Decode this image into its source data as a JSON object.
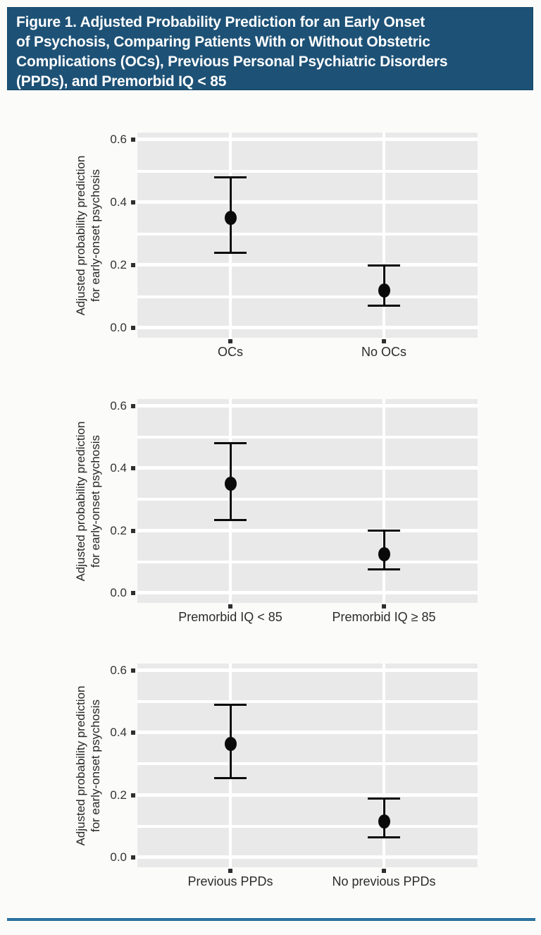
{
  "header": {
    "title_lines": [
      "Figure 1. Adjusted Probability Prediction for an Early Onset",
      "of Psychosis, Comparing Patients With or Without Obstetric",
      "Complications (OCs), Previous Personal Psychiatric Disorders",
      "(PPDs), and Premorbid IQ < 85"
    ]
  },
  "colors": {
    "header_bg": "#1d5176",
    "header_text": "#ffffff",
    "panel_bg": "#e9e9e9",
    "gridline": "#ffffff",
    "marker": "#0a0a0a",
    "tick": "#2f2f2f",
    "bottom_rule": "#2672a5"
  },
  "chart_data": [
    {
      "type": "scatter",
      "title": "",
      "ylabel_lines": [
        "Adjusted probability prediction",
        "for early-onset psychosis"
      ],
      "ylabel": "Adjusted probability prediction for early-onset psychosis",
      "xlabel": "",
      "ylim": [
        -0.03,
        0.62
      ],
      "ytick_values": [
        0.0,
        0.2,
        0.4,
        0.6
      ],
      "ytick_labels": [
        "0.0",
        "0.2",
        "0.4",
        "0.6"
      ],
      "minor_grid_values": [
        0.1,
        0.3,
        0.5
      ],
      "grid": "white major and minor horizontal lines plus vertical lines at categories on gray panel",
      "legend": "none",
      "categories": [
        "OCs",
        "No OCs"
      ],
      "points": [
        {
          "label": "OCs",
          "y": 0.35,
          "ci_low": 0.24,
          "ci_high": 0.48
        },
        {
          "label": "No OCs",
          "y": 0.12,
          "ci_low": 0.07,
          "ci_high": 0.2
        }
      ]
    },
    {
      "type": "scatter",
      "title": "",
      "ylabel_lines": [
        "Adjusted probability prediction",
        "for early-onset psychosis"
      ],
      "ylabel": "Adjusted probability prediction for early-onset psychosis",
      "xlabel": "",
      "ylim": [
        -0.03,
        0.62
      ],
      "ytick_values": [
        0.0,
        0.2,
        0.4,
        0.6
      ],
      "ytick_labels": [
        "0.0",
        "0.2",
        "0.4",
        "0.6"
      ],
      "minor_grid_values": [
        0.1,
        0.3,
        0.5
      ],
      "grid": "white major and minor horizontal lines plus vertical lines at categories on gray panel",
      "legend": "none",
      "categories": [
        "Premorbid IQ < 85",
        "Premorbid IQ ≥ 85"
      ],
      "points": [
        {
          "label": "Premorbid IQ < 85",
          "y": 0.35,
          "ci_low": 0.235,
          "ci_high": 0.48
        },
        {
          "label": "Premorbid IQ ≥ 85",
          "y": 0.125,
          "ci_low": 0.075,
          "ci_high": 0.2
        }
      ]
    },
    {
      "type": "scatter",
      "title": "",
      "ylabel_lines": [
        "Adjusted probability prediction",
        "for early-onset psychosis"
      ],
      "ylabel": "Adjusted probability prediction for early-onset psychosis",
      "xlabel": "",
      "ylim": [
        -0.03,
        0.62
      ],
      "ytick_values": [
        0.0,
        0.2,
        0.4,
        0.6
      ],
      "ytick_labels": [
        "0.0",
        "0.2",
        "0.4",
        "0.6"
      ],
      "minor_grid_values": [
        0.1,
        0.3,
        0.5
      ],
      "grid": "white major and minor horizontal lines plus vertical lines at categories on gray panel",
      "legend": "none",
      "categories": [
        "Previous PPDs",
        "No previous PPDs"
      ],
      "points": [
        {
          "label": "Previous PPDs",
          "y": 0.365,
          "ci_low": 0.255,
          "ci_high": 0.49
        },
        {
          "label": "No previous PPDs",
          "y": 0.115,
          "ci_low": 0.065,
          "ci_high": 0.19
        }
      ]
    }
  ]
}
